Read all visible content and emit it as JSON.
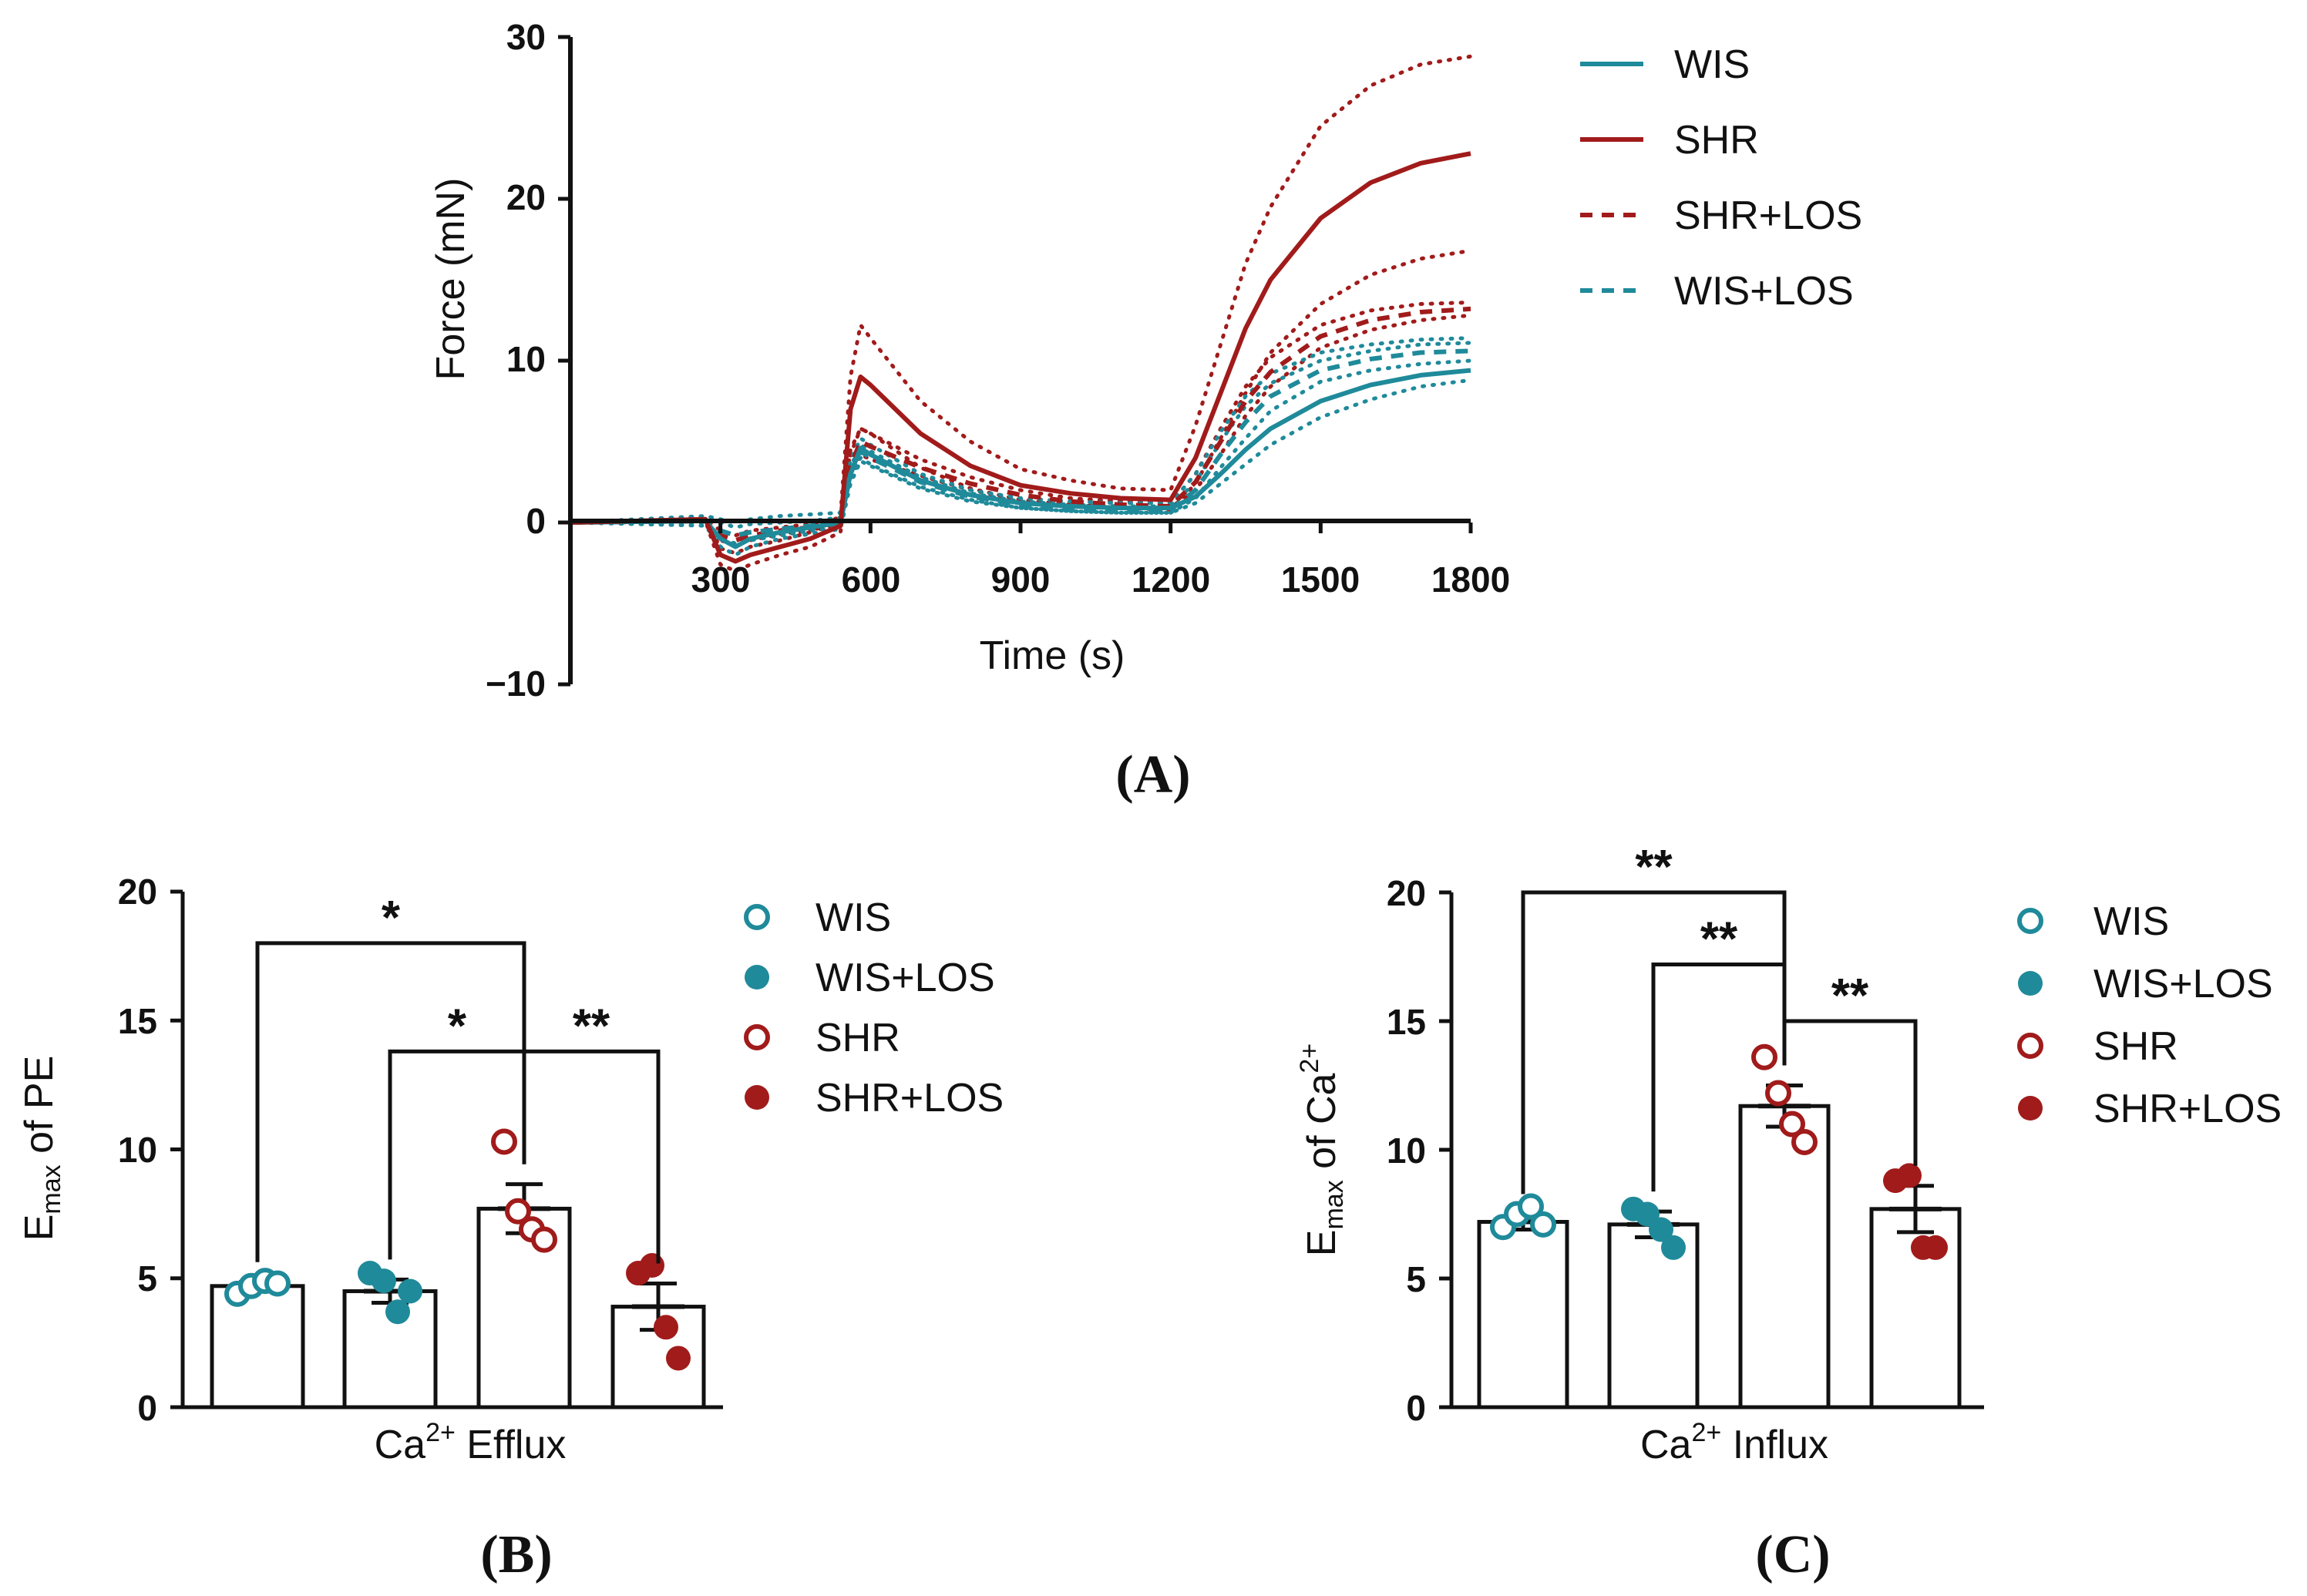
{
  "colors": {
    "teal": "#1f8a9a",
    "red": "#a11b1b",
    "black": "#111111"
  },
  "panelA": {
    "panel_label": "(A)",
    "chart_data": {
      "type": "line",
      "xlabel": "Time (s)",
      "ylabel": "Force (mN)",
      "xlim": [
        0,
        1800
      ],
      "ylim": [
        -10,
        30
      ],
      "xticks": [
        "300",
        "600",
        "900",
        "1200",
        "1500",
        "1800"
      ],
      "yticks": [
        "−10",
        "0",
        "10",
        "20",
        "30"
      ],
      "legend": [
        "WIS",
        "SHR",
        "SHR+LOS",
        "WIS+LOS"
      ],
      "series": [
        {
          "name": "WIS",
          "color": "teal",
          "style": "solid",
          "x": [
            0,
            270,
            300,
            330,
            360,
            420,
            480,
            540,
            560,
            580,
            600,
            700,
            800,
            900,
            1000,
            1100,
            1200,
            1250,
            1300,
            1350,
            1400,
            1500,
            1600,
            1700,
            1800
          ],
          "y": [
            0,
            0.1,
            -1,
            -1.5,
            -1,
            -0.6,
            -0.3,
            0,
            3,
            4.6,
            4.2,
            2.6,
            1.7,
            1.2,
            1.0,
            0.9,
            0.9,
            1.6,
            3.0,
            4.5,
            5.8,
            7.5,
            8.5,
            9.1,
            9.4
          ]
        },
        {
          "name": "SHR",
          "color": "red",
          "style": "solid",
          "x": [
            0,
            270,
            300,
            330,
            360,
            420,
            480,
            540,
            560,
            580,
            600,
            700,
            800,
            900,
            1000,
            1100,
            1200,
            1250,
            1300,
            1350,
            1400,
            1500,
            1600,
            1700,
            1800
          ],
          "y": [
            0,
            0.2,
            -2,
            -2.4,
            -2,
            -1.5,
            -1,
            -0.2,
            7,
            9,
            8.5,
            5.5,
            3.5,
            2.3,
            1.8,
            1.5,
            1.4,
            4,
            8,
            12,
            15,
            18.8,
            21,
            22.2,
            22.8
          ]
        },
        {
          "name": "SHR+LOS",
          "color": "red",
          "style": "dashed",
          "x": [
            0,
            270,
            300,
            330,
            360,
            420,
            480,
            540,
            560,
            580,
            600,
            700,
            800,
            900,
            1000,
            1100,
            1200,
            1250,
            1300,
            1350,
            1400,
            1500,
            1600,
            1700,
            1800
          ],
          "y": [
            0,
            0.1,
            -0.8,
            -1.1,
            -0.8,
            -0.5,
            -0.3,
            0,
            3.5,
            5,
            4.7,
            3.4,
            2.4,
            1.7,
            1.3,
            1.1,
            1.0,
            2.5,
            5,
            7.5,
            9.3,
            11.5,
            12.5,
            13.0,
            13.2
          ]
        },
        {
          "name": "WIS+LOS",
          "color": "teal",
          "style": "dashed",
          "x": [
            0,
            270,
            300,
            330,
            360,
            420,
            480,
            540,
            560,
            580,
            600,
            700,
            800,
            900,
            1000,
            1100,
            1200,
            1250,
            1300,
            1350,
            1400,
            1500,
            1600,
            1700,
            1800
          ],
          "y": [
            0,
            0.1,
            -0.5,
            -0.8,
            -0.6,
            -0.4,
            -0.2,
            0,
            3,
            4.4,
            4,
            2.5,
            1.6,
            1.1,
            0.9,
            0.8,
            0.8,
            2,
            4.2,
            6.2,
            7.8,
            9.4,
            10.1,
            10.5,
            10.6
          ]
        },
        {
          "name": "SHR SEM upper",
          "color": "red",
          "style": "dotted",
          "x": [
            0,
            270,
            300,
            330,
            360,
            420,
            480,
            540,
            560,
            580,
            600,
            700,
            800,
            900,
            1000,
            1100,
            1200,
            1250,
            1300,
            1350,
            1400,
            1500,
            1600,
            1700,
            1800
          ],
          "y": [
            0,
            0.3,
            -1.6,
            -1.9,
            -1.5,
            -1.1,
            -0.6,
            0.4,
            9,
            12.2,
            11.4,
            7.5,
            5,
            3.3,
            2.6,
            2.1,
            2.0,
            6,
            11,
            16,
            19.5,
            24.5,
            27,
            28.3,
            28.8
          ]
        },
        {
          "name": "SHR SEM lower",
          "color": "red",
          "style": "dotted",
          "x": [
            0,
            270,
            300,
            330,
            360,
            420,
            480,
            540,
            560,
            580,
            600,
            700,
            800,
            900,
            1000,
            1100,
            1200,
            1250,
            1300,
            1350,
            1400,
            1500,
            1600,
            1700,
            1800
          ],
          "y": [
            0,
            0.1,
            -2.6,
            -3,
            -2.6,
            -2,
            -1.5,
            -0.6,
            4.5,
            5.8,
            5.5,
            3.4,
            2.1,
            1.4,
            1.1,
            0.9,
            0.8,
            2.4,
            5.2,
            8,
            10.5,
            13.5,
            15.3,
            16.3,
            16.8
          ]
        },
        {
          "name": "SHR+LOS SEM upper",
          "color": "red",
          "style": "dotted",
          "x": [
            0,
            270,
            300,
            330,
            360,
            420,
            480,
            540,
            560,
            580,
            600,
            700,
            800,
            900,
            1000,
            1100,
            1200,
            1250,
            1300,
            1350,
            1400,
            1500,
            1600,
            1700,
            1800
          ],
          "y": [
            0,
            0.2,
            -0.5,
            -0.8,
            -0.5,
            -0.3,
            -0.1,
            0.2,
            4.2,
            5.8,
            5.5,
            3.9,
            2.8,
            2.0,
            1.5,
            1.3,
            1.2,
            3,
            5.8,
            8.4,
            10.2,
            12.2,
            13.1,
            13.5,
            13.6
          ]
        },
        {
          "name": "SHR+LOS SEM lower",
          "color": "red",
          "style": "dotted",
          "x": [
            0,
            270,
            300,
            330,
            360,
            420,
            480,
            540,
            560,
            580,
            600,
            700,
            800,
            900,
            1000,
            1100,
            1200,
            1250,
            1300,
            1350,
            1400,
            1500,
            1600,
            1700,
            1800
          ],
          "y": [
            0,
            0,
            -1.1,
            -1.4,
            -1.1,
            -0.7,
            -0.5,
            -0.2,
            2.8,
            4.2,
            3.9,
            2.9,
            2.0,
            1.4,
            1.1,
            0.9,
            0.8,
            2,
            4.2,
            6.6,
            8.4,
            10.8,
            11.9,
            12.5,
            12.8
          ]
        },
        {
          "name": "WIS SEM upper",
          "color": "teal",
          "style": "dotted",
          "x": [
            0,
            270,
            300,
            330,
            360,
            420,
            480,
            540,
            560,
            580,
            600,
            700,
            800,
            900,
            1000,
            1100,
            1200,
            1250,
            1300,
            1350,
            1400,
            1500,
            1600,
            1700,
            1800
          ],
          "y": [
            0,
            0.4,
            0.2,
            0,
            0.2,
            0.4,
            0.5,
            0.6,
            3.8,
            5.2,
            4.8,
            3.0,
            2.0,
            1.5,
            1.3,
            1.2,
            1.2,
            3,
            5.6,
            7.8,
            9.2,
            10.5,
            11.0,
            11.3,
            11.4
          ]
        },
        {
          "name": "WIS SEM lower",
          "color": "teal",
          "style": "dotted",
          "x": [
            0,
            270,
            300,
            330,
            360,
            420,
            480,
            540,
            560,
            580,
            600,
            700,
            800,
            900,
            1000,
            1100,
            1200,
            1250,
            1300,
            1350,
            1400,
            1500,
            1600,
            1700,
            1800
          ],
          "y": [
            0,
            -0.2,
            -1.5,
            -2,
            -1.5,
            -1,
            -0.7,
            -0.4,
            2.4,
            3.8,
            3.5,
            2.1,
            1.3,
            0.9,
            0.7,
            0.6,
            0.6,
            1.2,
            2.4,
            3.6,
            4.8,
            6.5,
            7.6,
            8.4,
            8.8
          ]
        },
        {
          "name": "WIS+LOS SEM upper",
          "color": "teal",
          "style": "dotted",
          "x": [
            0,
            270,
            300,
            330,
            360,
            420,
            480,
            540,
            560,
            580,
            600,
            700,
            800,
            900,
            1000,
            1100,
            1200,
            1250,
            1300,
            1350,
            1400,
            1500,
            1600,
            1700,
            1800
          ],
          "y": [
            0,
            0.2,
            0,
            -0.3,
            -0.1,
            0,
            0.1,
            0.3,
            3.4,
            4.8,
            4.4,
            2.8,
            1.8,
            1.3,
            1.1,
            1.0,
            1.0,
            2.5,
            5,
            7.2,
            8.6,
            10.0,
            10.6,
            11.0,
            11.1
          ]
        },
        {
          "name": "WIS+LOS SEM lower",
          "color": "teal",
          "style": "dotted",
          "x": [
            0,
            270,
            300,
            330,
            360,
            420,
            480,
            540,
            560,
            580,
            600,
            700,
            800,
            900,
            1000,
            1100,
            1200,
            1250,
            1300,
            1350,
            1400,
            1500,
            1600,
            1700,
            1800
          ],
          "y": [
            0,
            0,
            -1,
            -1.3,
            -1.1,
            -0.8,
            -0.5,
            -0.3,
            2.6,
            4.0,
            3.6,
            2.2,
            1.4,
            0.9,
            0.7,
            0.6,
            0.6,
            1.5,
            3.4,
            5.2,
            6.9,
            8.7,
            9.4,
            9.8,
            10.0
          ]
        }
      ]
    }
  },
  "panelB": {
    "panel_label": "(B)",
    "chart_data": {
      "type": "bar",
      "ylabel_main": "E",
      "ylabel_sub": "max",
      "ylabel_rest": " of PE",
      "xlabel_pre": "Ca",
      "xlabel_sup": "2+",
      "xlabel_post": " Efflux",
      "ylim": [
        0,
        20
      ],
      "yticks": [
        "0",
        "5",
        "10",
        "15",
        "20"
      ],
      "categories": [
        "WIS",
        "WIS+LOS",
        "SHR",
        "SHR+LOS"
      ],
      "means": [
        4.7,
        4.5,
        7.7,
        3.9
      ],
      "sem": [
        0.15,
        0.45,
        0.95,
        0.9
      ],
      "points": [
        [
          4.4,
          4.7,
          4.9,
          4.8
        ],
        [
          5.2,
          4.9,
          3.7,
          4.5
        ],
        [
          10.3,
          7.6,
          6.9,
          6.5
        ],
        [
          5.2,
          5.5,
          3.1,
          1.9
        ]
      ],
      "markers": [
        {
          "fill": false,
          "color": "teal"
        },
        {
          "fill": true,
          "color": "teal"
        },
        {
          "fill": false,
          "color": "red"
        },
        {
          "fill": true,
          "color": "red"
        }
      ],
      "comparisons": [
        {
          "from": 0,
          "to": 2,
          "label": "*",
          "level": 18.0
        },
        {
          "from": 1,
          "to": 2,
          "label": "*",
          "level": 13.8
        },
        {
          "from": 2,
          "to": 3,
          "label": "**",
          "level": 13.8
        }
      ],
      "legend": [
        "WIS",
        "WIS+LOS",
        "SHR",
        "SHR+LOS"
      ]
    }
  },
  "panelC": {
    "panel_label": "(C)",
    "chart_data": {
      "type": "bar",
      "ylabel_main": "E",
      "ylabel_sub": "max",
      "ylabel_rest": " of Ca",
      "ylabel_sup": "2+",
      "xlabel_pre": "Ca",
      "xlabel_sup": "2+",
      "xlabel_post": " Influx",
      "ylim": [
        0,
        20
      ],
      "yticks": [
        "0",
        "5",
        "10",
        "15",
        "20"
      ],
      "categories": [
        "WIS",
        "WIS+LOS",
        "SHR",
        "SHR+LOS"
      ],
      "means": [
        7.2,
        7.1,
        11.7,
        7.7
      ],
      "sem": [
        0.3,
        0.5,
        0.8,
        0.9
      ],
      "points": [
        [
          7.0,
          7.5,
          7.8,
          7.1
        ],
        [
          7.7,
          7.5,
          6.9,
          6.2
        ],
        [
          13.6,
          12.2,
          11.0,
          10.3
        ],
        [
          8.8,
          9.0,
          6.2,
          6.2
        ]
      ],
      "markers": [
        {
          "fill": false,
          "color": "teal"
        },
        {
          "fill": true,
          "color": "teal"
        },
        {
          "fill": false,
          "color": "red"
        },
        {
          "fill": true,
          "color": "red"
        }
      ],
      "comparisons": [
        {
          "from": 0,
          "to": 2,
          "label": "**",
          "level": 20.0
        },
        {
          "from": 1,
          "to": 2,
          "label": "**",
          "level": 17.2
        },
        {
          "from": 2,
          "to": 3,
          "label": "**",
          "level": 15.0
        }
      ],
      "legend": [
        "WIS",
        "WIS+LOS",
        "SHR",
        "SHR+LOS"
      ]
    }
  }
}
